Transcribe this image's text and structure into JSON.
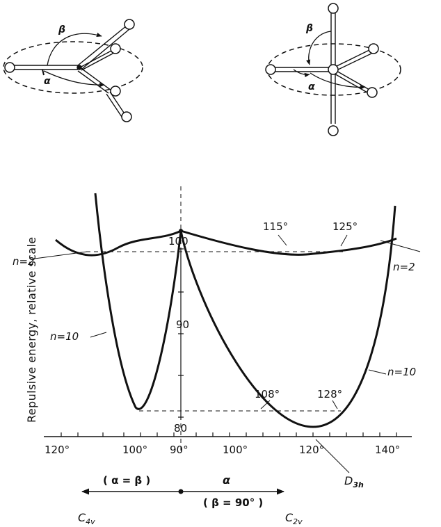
{
  "chart_data": {
    "type": "line",
    "ylabel": "Repulsive energy, relative scale",
    "y_ticks": [
      "100",
      "90",
      "80"
    ],
    "x_tick_labels": [
      "120°",
      "100°",
      "90°",
      "100°",
      "120°",
      "140°"
    ],
    "series": [
      {
        "name": "n=2",
        "label": "n=2"
      },
      {
        "name": "n=10",
        "label": "n=10"
      }
    ],
    "annotations": [
      "115°",
      "125°",
      "108°",
      "128°"
    ],
    "symmetry": {
      "c4v": "C",
      "c4v_sub": "4v",
      "c2v": "C",
      "c2v_sub": "2v",
      "d3h": "D",
      "d3h_sub": "3h"
    },
    "path": {
      "left": "( α = β )",
      "right_top": "α",
      "right_bottom": "( β = 90° )"
    },
    "molecule_labels": {
      "beta": "β",
      "alpha": "α"
    }
  }
}
